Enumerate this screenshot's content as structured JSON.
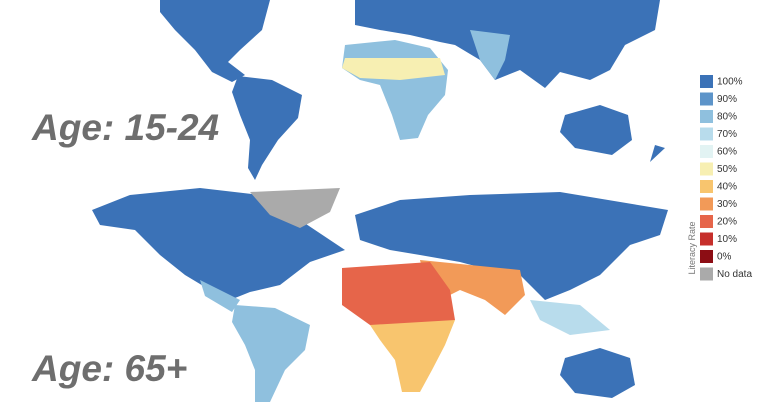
{
  "panels": [
    {
      "label": "Age: 15-24"
    },
    {
      "label": "Age: 65+"
    }
  ],
  "legend": {
    "title": "Literacy Rate",
    "items": [
      {
        "label": "100%",
        "color": "#3b72b7"
      },
      {
        "label": "90%",
        "color": "#5d94c9"
      },
      {
        "label": "80%",
        "color": "#8fc0de"
      },
      {
        "label": "70%",
        "color": "#b8dcec"
      },
      {
        "label": "60%",
        "color": "#e2f3f3"
      },
      {
        "label": "50%",
        "color": "#f7efb2"
      },
      {
        "label": "40%",
        "color": "#f8c56e"
      },
      {
        "label": "30%",
        "color": "#f29a58"
      },
      {
        "label": "20%",
        "color": "#e6654a"
      },
      {
        "label": "10%",
        "color": "#c62f2b"
      },
      {
        "label": "0%",
        "color": "#8c0d14"
      },
      {
        "label": "No data",
        "color": "#aaaaaa"
      }
    ]
  }
}
